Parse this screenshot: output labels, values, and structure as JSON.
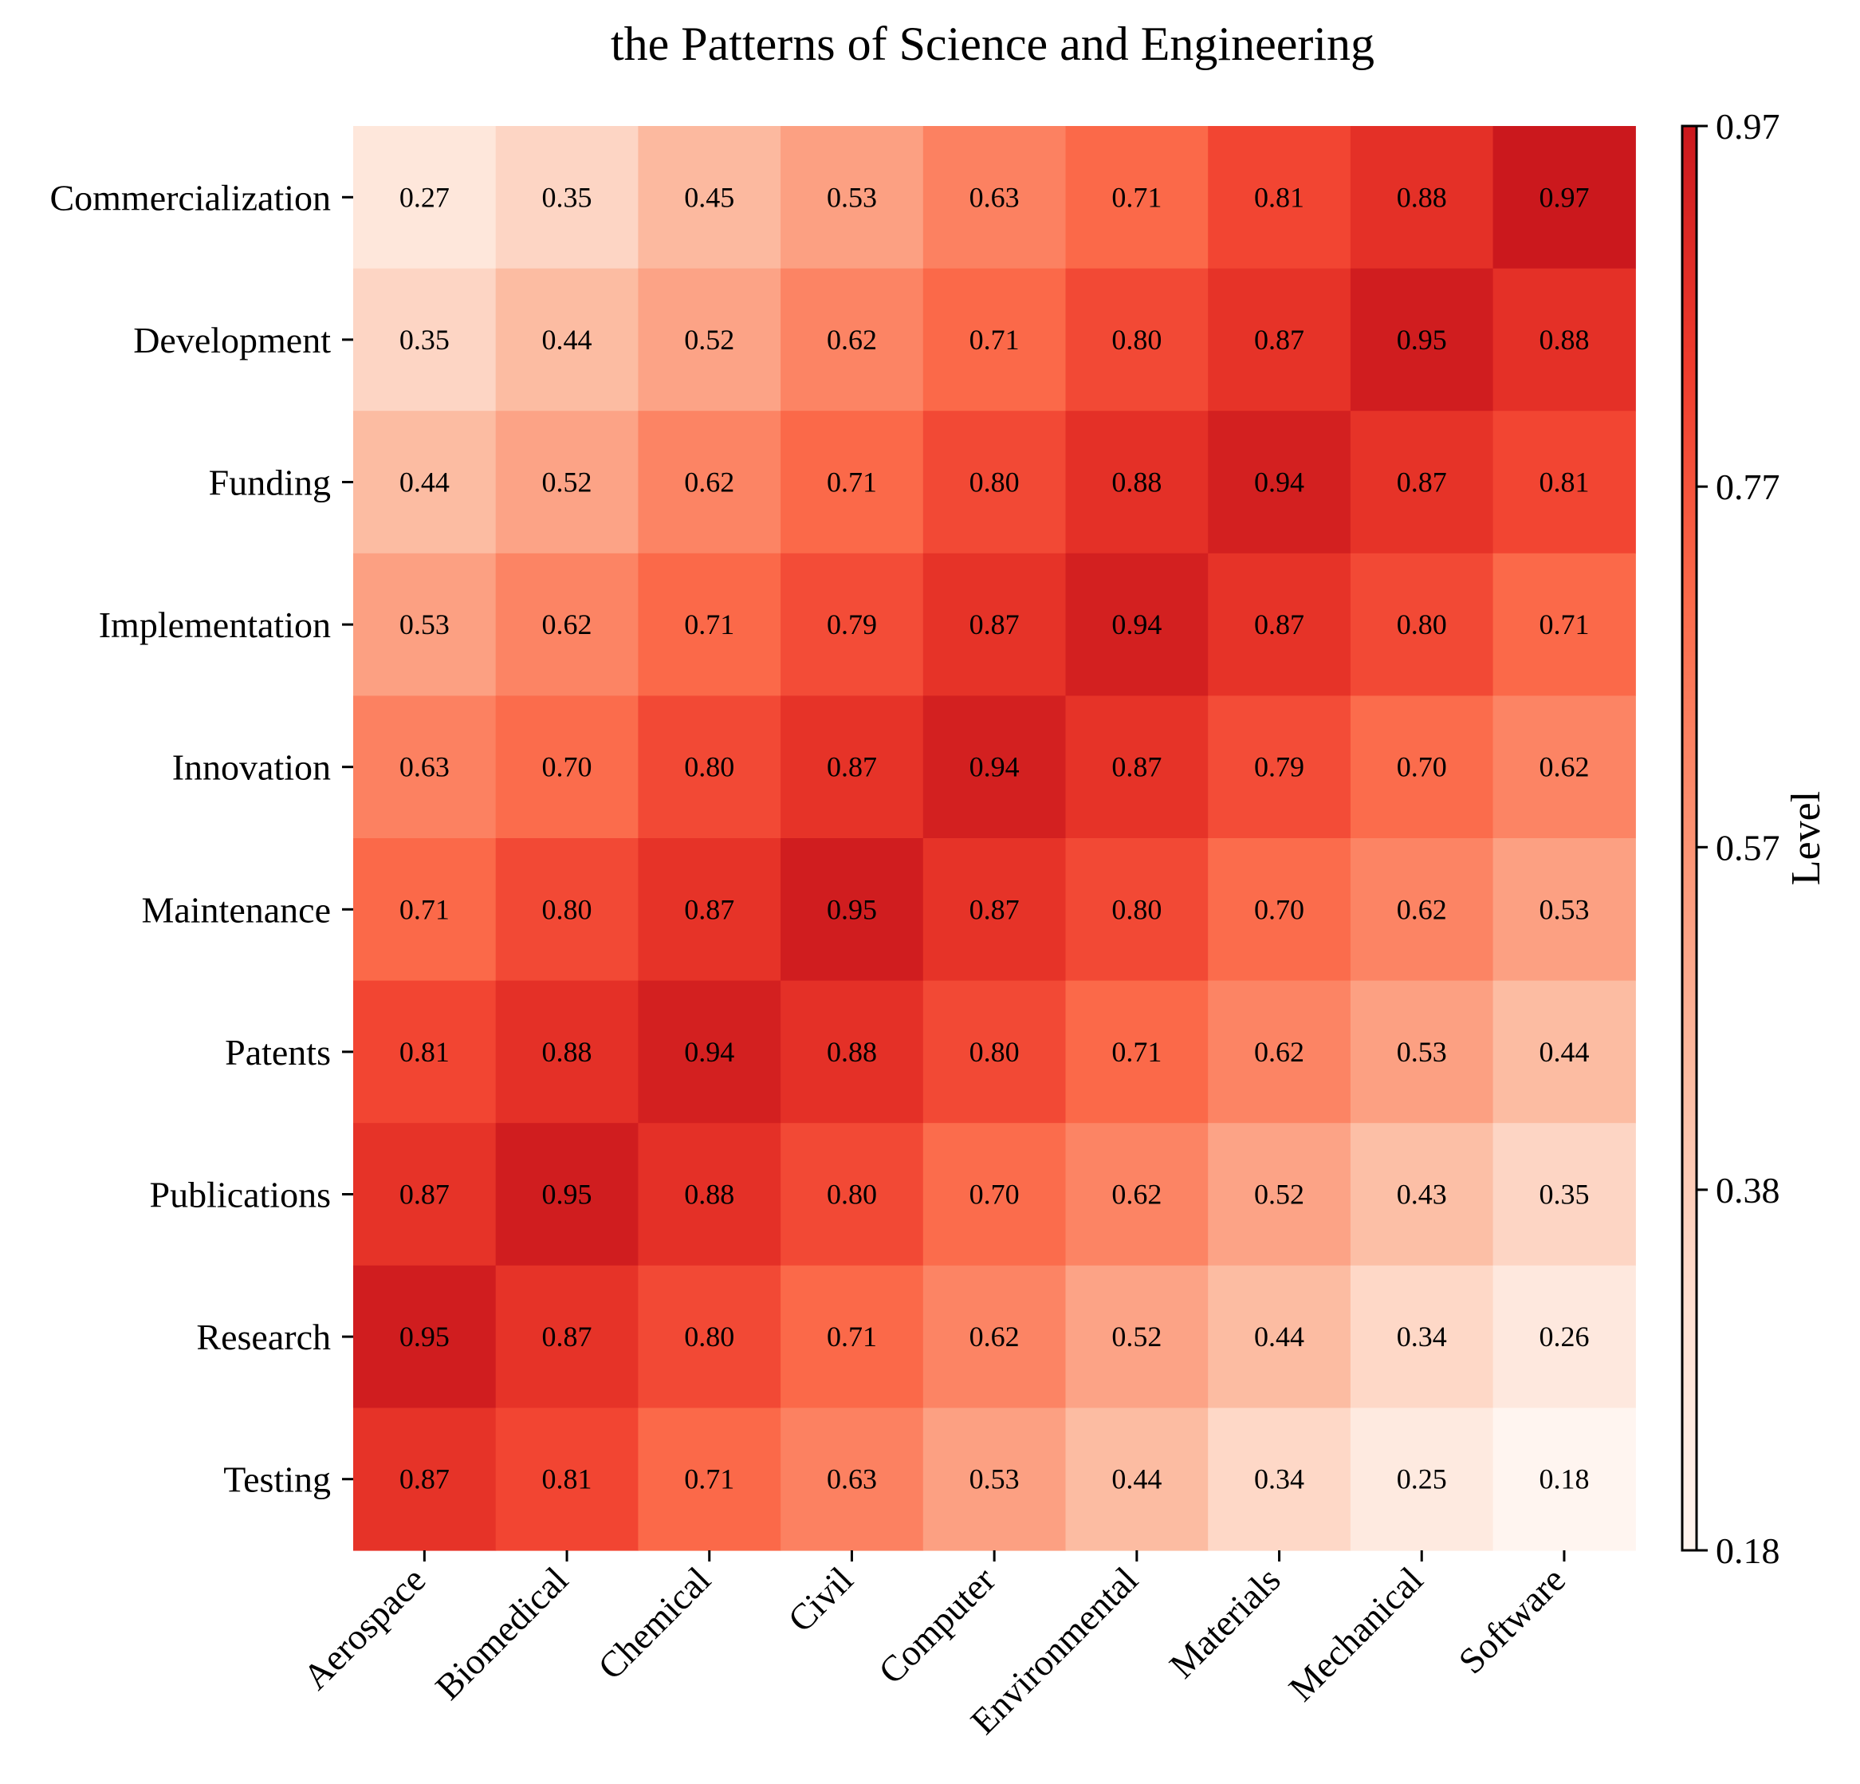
{
  "chart_data": {
    "type": "heatmap",
    "title": "the Patterns of Science and Engineering",
    "x_categories": [
      "Aerospace",
      "Biomedical",
      "Chemical",
      "Civil",
      "Computer",
      "Environmental",
      "Materials",
      "Mechanical",
      "Software"
    ],
    "y_categories": [
      "Commercialization",
      "Development",
      "Funding",
      "Implementation",
      "Innovation",
      "Maintenance",
      "Patents",
      "Publications",
      "Research",
      "Testing"
    ],
    "values": [
      [
        0.27,
        0.35,
        0.45,
        0.53,
        0.63,
        0.71,
        0.81,
        0.88,
        0.97
      ],
      [
        0.35,
        0.44,
        0.52,
        0.62,
        0.71,
        0.8,
        0.87,
        0.95,
        0.88
      ],
      [
        0.44,
        0.52,
        0.62,
        0.71,
        0.8,
        0.88,
        0.94,
        0.87,
        0.81
      ],
      [
        0.53,
        0.62,
        0.71,
        0.79,
        0.87,
        0.94,
        0.87,
        0.8,
        0.71
      ],
      [
        0.63,
        0.7,
        0.8,
        0.87,
        0.94,
        0.87,
        0.79,
        0.7,
        0.62
      ],
      [
        0.71,
        0.8,
        0.87,
        0.95,
        0.87,
        0.8,
        0.7,
        0.62,
        0.53
      ],
      [
        0.81,
        0.88,
        0.94,
        0.88,
        0.8,
        0.71,
        0.62,
        0.53,
        0.44
      ],
      [
        0.87,
        0.95,
        0.88,
        0.8,
        0.7,
        0.62,
        0.52,
        0.43,
        0.35
      ],
      [
        0.95,
        0.87,
        0.8,
        0.71,
        0.62,
        0.52,
        0.44,
        0.34,
        0.26
      ],
      [
        0.87,
        0.81,
        0.71,
        0.63,
        0.53,
        0.44,
        0.34,
        0.25,
        0.18
      ]
    ],
    "colorbar": {
      "label": "Level",
      "range": [
        0.18,
        0.97
      ],
      "ticks": [
        "0.18",
        "0.38",
        "0.57",
        "0.77",
        "0.97"
      ]
    },
    "colormap": [
      "#fff5f0",
      "#fee0d2",
      "#fcbba1",
      "#fc9272",
      "#fb6a4a",
      "#ef3b2c",
      "#cb181d"
    ]
  }
}
